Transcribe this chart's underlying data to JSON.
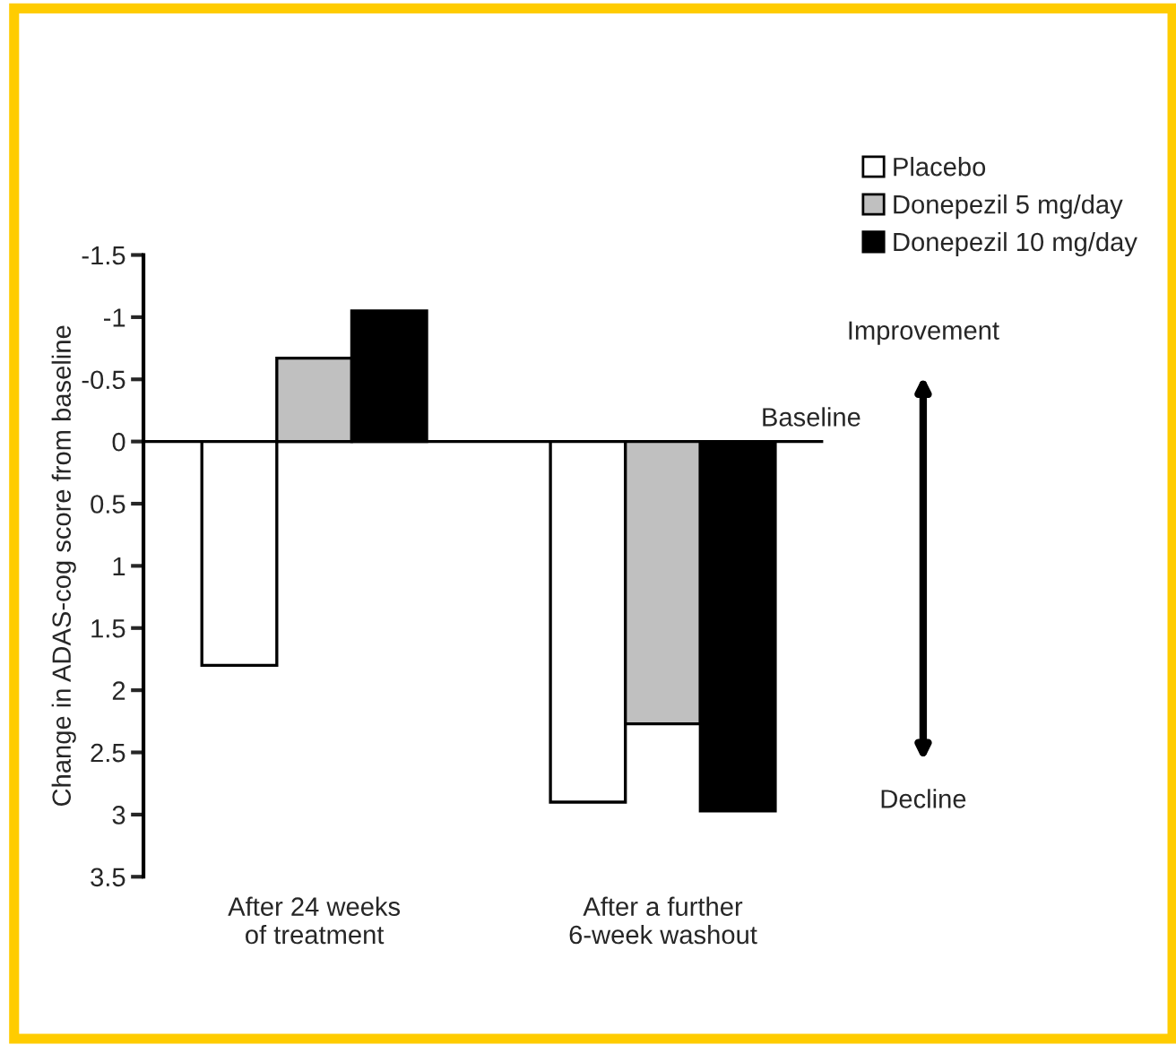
{
  "chart_data": {
    "type": "bar",
    "ylabel": "Change in ADAS-cog score from baseline",
    "categories": [
      "After 24 weeks\nof treatment",
      "After a further\n6-week washout"
    ],
    "series": [
      {
        "name": "Placebo",
        "color": "#ffffff",
        "values": [
          1.8,
          2.9
        ]
      },
      {
        "name": "Donepezil 5 mg/day",
        "color": "#c0c0c0",
        "values": [
          -0.67,
          2.27
        ]
      },
      {
        "name": "Donepezil 10 mg/day",
        "color": "#000000",
        "values": [
          -1.05,
          2.97
        ]
      }
    ],
    "ylim": [
      3.5,
      -1.5
    ],
    "yticks": [
      {
        "value": -1.5,
        "label": "-1.5"
      },
      {
        "value": -1,
        "label": "-1"
      },
      {
        "value": -0.5,
        "label": "-0.5"
      },
      0,
      0.5,
      1,
      1.5,
      2,
      2.5,
      3,
      3.5
    ],
    "ref_lines": [
      {
        "axis": "y",
        "value": 0,
        "label": "Baseline",
        "color": "#000000"
      }
    ],
    "annotations": [
      "Improvement",
      "Decline"
    ],
    "legend": "top right",
    "grid": false
  }
}
